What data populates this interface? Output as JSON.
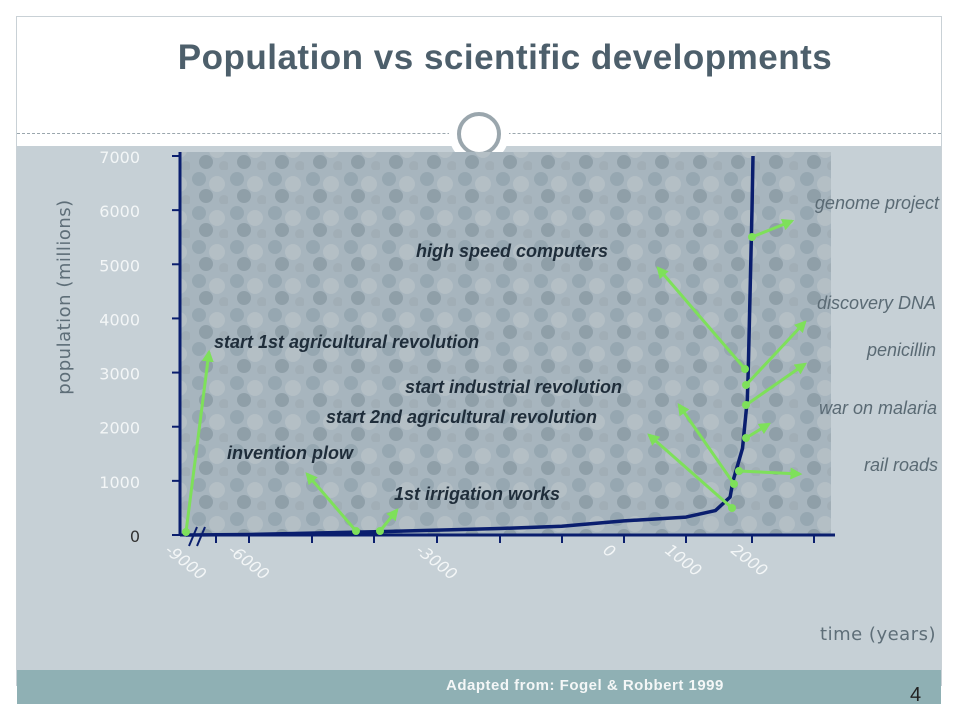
{
  "slide": {
    "title": "Population vs scientific developments",
    "footer": "Adapted from: Fogel & Robbert 1999",
    "page_number": "4",
    "colors": {
      "title": "#4d5f6b",
      "line": "#0a1e6e",
      "arrow": "#7ee05a",
      "background": "#c6d0d6",
      "footer": "#8fb0b4"
    }
  },
  "chart_data": {
    "type": "line",
    "title": "Population vs scientific developments",
    "xlabel": "time (years)",
    "ylabel": "population (millions)",
    "ylim": [
      0,
      7000
    ],
    "x_ticks": [
      "-9000",
      "-6000",
      "-3000",
      "0",
      "1000",
      "2000"
    ],
    "y_ticks": [
      "0",
      "1000",
      "2000",
      "3000",
      "4000",
      "5000",
      "6000",
      "7000"
    ],
    "axis_break": true,
    "series": [
      {
        "x": [
          -9000,
          -6000,
          -4000,
          -2000,
          -1000,
          0,
          1000,
          1500,
          1750,
          1800,
          1850,
          1900,
          1950,
          1960,
          1980,
          2000,
          2005
        ],
        "y": [
          0,
          10,
          60,
          120,
          160,
          260,
          330,
          450,
          700,
          1000,
          1300,
          1600,
          2500,
          3000,
          4500,
          6000,
          7000
        ]
      }
    ],
    "annotations": [
      {
        "text": "start 1st agricultural revolution",
        "x": -9000,
        "style": "dark"
      },
      {
        "text": "invention plow",
        "x": -4000,
        "style": "dark"
      },
      {
        "text": "1st irrigation works",
        "x": -3500,
        "style": "dark"
      },
      {
        "text": "start 2nd agricultural revolution",
        "x": 1700,
        "style": "dark"
      },
      {
        "text": "start industrial revolution",
        "x": 1750,
        "style": "dark"
      },
      {
        "text": "high speed computers",
        "x": 1960,
        "style": "dark"
      },
      {
        "text": "genome project",
        "x": 2000,
        "style": "light"
      },
      {
        "text": "discovery DNA",
        "x": 1953,
        "style": "light"
      },
      {
        "text": "penicillin",
        "x": 1928,
        "style": "light"
      },
      {
        "text": "war on malaria",
        "x": 1945,
        "style": "light"
      },
      {
        "text": "rail roads",
        "x": 1830,
        "style": "light"
      }
    ]
  }
}
